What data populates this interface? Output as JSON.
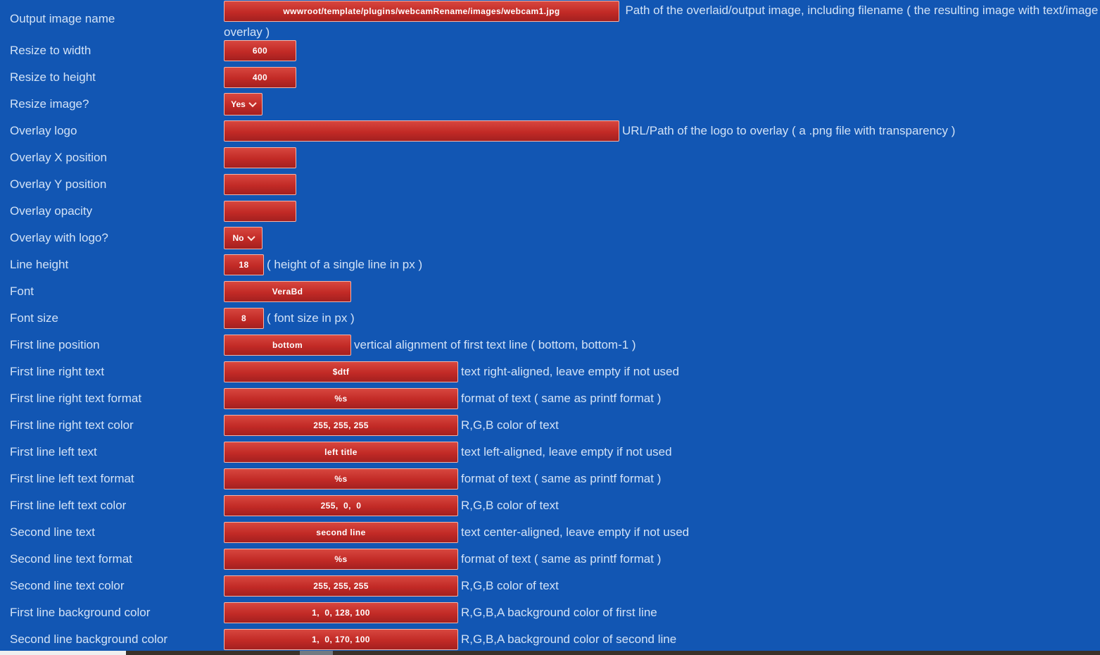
{
  "colors": {
    "page_background": "#1256b3",
    "input_red": "#c22a26",
    "input_border_pink": "#f2b4a9",
    "label_text": "#d2e2f6",
    "input_text": "#ffffff",
    "scrollbar_track": "#3a3129",
    "scrollbar_thumb": "#727a82",
    "footer_segment": "#efefef"
  },
  "form": {
    "rows": [
      {
        "label": "Output image name",
        "control": "input",
        "width": "wide",
        "value": "wwwroot/template/plugins/webcamRename/images/webcam1.jpg",
        "description": "Path of the overlaid/output image, including filename ( the resulting image with text/image overlay )",
        "tall": true
      },
      {
        "label": "Resize to width",
        "control": "input",
        "width": "s",
        "value": "600",
        "description": ""
      },
      {
        "label": "Resize to height",
        "control": "input",
        "width": "s",
        "value": "400",
        "description": ""
      },
      {
        "label": "Resize image?",
        "control": "select",
        "width": "select",
        "value": "Yes",
        "description": ""
      },
      {
        "label": "Overlay logo",
        "control": "input",
        "width": "wide",
        "value": "",
        "description": "URL/Path of the logo to overlay ( a .png file with transparency )"
      },
      {
        "label": "Overlay X position",
        "control": "input",
        "width": "s",
        "value": "",
        "description": ""
      },
      {
        "label": "Overlay Y position",
        "control": "input",
        "width": "s",
        "value": "",
        "description": ""
      },
      {
        "label": "Overlay opacity",
        "control": "input",
        "width": "s",
        "value": "",
        "description": ""
      },
      {
        "label": "Overlay with logo?",
        "control": "select",
        "width": "select",
        "value": "No",
        "description": ""
      },
      {
        "label": "Line height",
        "control": "input",
        "width": "xs",
        "value": "18",
        "description": "( height of a single line in px )"
      },
      {
        "label": "Font",
        "control": "input",
        "width": "m",
        "value": "VeraBd",
        "description": ""
      },
      {
        "label": "Font size",
        "control": "input",
        "width": "xs",
        "value": "8",
        "description": "( font size in px )"
      },
      {
        "label": "First line position",
        "control": "input",
        "width": "m",
        "value": "bottom",
        "description": "vertical alignment of first text line ( bottom, bottom-1 )"
      },
      {
        "label": "First line right text",
        "control": "input",
        "width": "l",
        "value": "$dtf",
        "description": "text right-aligned, leave empty if not used"
      },
      {
        "label": "First line right text format",
        "control": "input",
        "width": "l",
        "value": "%s",
        "description": "format of text ( same as printf format )"
      },
      {
        "label": "First line right text color",
        "control": "input",
        "width": "l",
        "value": "255, 255, 255",
        "description": "R,G,B color of text"
      },
      {
        "label": "First line left text",
        "control": "input",
        "width": "l",
        "value": "left title",
        "description": "text left-aligned, leave empty if not used"
      },
      {
        "label": "First line left text format",
        "control": "input",
        "width": "l",
        "value": "%s",
        "description": "format of text ( same as printf format )"
      },
      {
        "label": "First line left text color",
        "control": "input",
        "width": "l",
        "value": "255,  0,  0",
        "description": "R,G,B color of text"
      },
      {
        "label": "Second line text",
        "control": "input",
        "width": "l",
        "value": "second line",
        "description": "text center-aligned, leave empty if not used"
      },
      {
        "label": "Second line text format",
        "control": "input",
        "width": "l",
        "value": "%s",
        "description": "format of text ( same as printf format )"
      },
      {
        "label": "Second line text color",
        "control": "input",
        "width": "l",
        "value": "255, 255, 255",
        "description": "R,G,B color of text"
      },
      {
        "label": "First line background color",
        "control": "input",
        "width": "l",
        "value": "1,  0, 128, 100",
        "description": "R,G,B,A background color of first line"
      },
      {
        "label": "Second line background color",
        "control": "input",
        "width": "l",
        "value": "1,  0, 170, 100",
        "description": "R,G,B,A background color of second line"
      }
    ]
  }
}
